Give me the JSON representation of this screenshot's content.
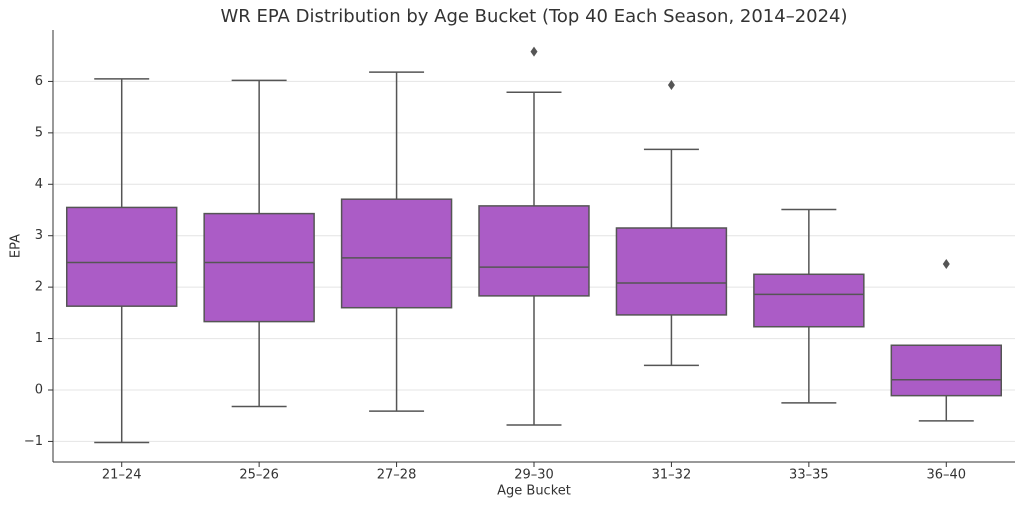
{
  "chart_data": {
    "type": "box",
    "title": "WR EPA Distribution by Age Bucket (Top 40 Each Season, 2014–2024)",
    "x_label": "Age Bucket",
    "y_label": "EPA",
    "categories": [
      "21–24",
      "25–26",
      "27–28",
      "29–30",
      "31–32",
      "33–35",
      "36–40"
    ],
    "boxes": [
      {
        "low": -1.02,
        "q1": 1.63,
        "median": 2.48,
        "q3": 3.55,
        "high": 6.05,
        "outliers": []
      },
      {
        "low": -0.32,
        "q1": 1.33,
        "median": 2.48,
        "q3": 3.43,
        "high": 6.02,
        "outliers": []
      },
      {
        "low": -0.41,
        "q1": 1.6,
        "median": 2.57,
        "q3": 3.71,
        "high": 6.18,
        "outliers": []
      },
      {
        "low": -0.68,
        "q1": 1.83,
        "median": 2.39,
        "q3": 3.58,
        "high": 5.79,
        "outliers": [
          6.58
        ]
      },
      {
        "low": 0.48,
        "q1": 1.46,
        "median": 2.08,
        "q3": 3.15,
        "high": 4.68,
        "outliers": [
          5.93
        ]
      },
      {
        "low": -0.25,
        "q1": 1.23,
        "median": 1.86,
        "q3": 2.25,
        "high": 3.51,
        "outliers": []
      },
      {
        "low": -0.6,
        "q1": -0.11,
        "median": 0.2,
        "q3": 0.87,
        "high": 0.87,
        "outliers": [
          2.45
        ]
      }
    ],
    "color": "#ab5cc6",
    "edge_color": "#555555",
    "ylim": [
      -1.4,
      7.0
    ],
    "yticks": [
      {
        "value": -1,
        "label": "−1"
      },
      0,
      1,
      2,
      3,
      4,
      5,
      6
    ],
    "grid": true
  }
}
